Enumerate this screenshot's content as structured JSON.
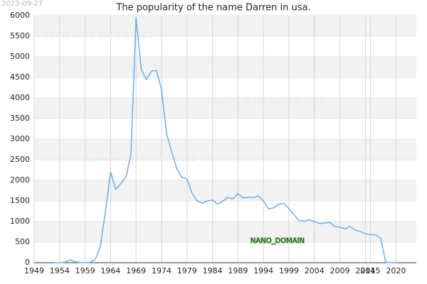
{
  "chart_data": {
    "type": "line",
    "title": "The popularity of the name Darren in usa.",
    "stamp": "2023-09-27",
    "watermarks": [
      "Names of the World © 2023",
      "Names of the World © 2023",
      "Names of the World © 2023"
    ],
    "annotation": "NANO_DOMAIN",
    "x": [
      1953,
      1954,
      1955,
      1956,
      1957,
      1958,
      1959,
      1960,
      1961,
      1962,
      1963,
      1964,
      1965,
      1966,
      1967,
      1968,
      1969,
      1970,
      1971,
      1972,
      1973,
      1974,
      1975,
      1976,
      1977,
      1978,
      1979,
      1980,
      1981,
      1982,
      1983,
      1984,
      1985,
      1986,
      1987,
      1988,
      1989,
      1990,
      1991,
      1992,
      1993,
      1994,
      1995,
      1996,
      1997,
      1998,
      1999,
      2000,
      2001,
      2002,
      2003,
      2004,
      2005,
      2006,
      2007,
      2008,
      2009,
      2010,
      2011,
      2012,
      2013,
      2014,
      2015,
      2016,
      2017,
      2018,
      2019,
      2020
    ],
    "series": [
      {
        "name": "Darren",
        "color": "#6aaee8",
        "values": [
          0,
          0,
          10,
          70,
          20,
          5,
          5,
          10,
          80,
          400,
          1250,
          2200,
          1780,
          1920,
          2080,
          2620,
          5950,
          4700,
          4450,
          4650,
          4670,
          4200,
          3120,
          2700,
          2280,
          2070,
          2040,
          1680,
          1500,
          1450,
          1500,
          1520,
          1420,
          1490,
          1590,
          1550,
          1680,
          1570,
          1590,
          1580,
          1620,
          1500,
          1310,
          1330,
          1420,
          1440,
          1310,
          1160,
          1020,
          1010,
          1040,
          1000,
          950,
          960,
          980,
          880,
          860,
          820,
          880,
          790,
          760,
          700,
          680,
          680,
          590,
          10,
          0,
          0
        ]
      }
    ],
    "xlim": [
      1949,
      2024
    ],
    "xticks": [
      1949,
      1954,
      1959,
      1964,
      1969,
      1974,
      1979,
      1984,
      1989,
      1994,
      1999,
      2004,
      2009,
      2014,
      2015,
      2020
    ],
    "ylim": [
      0,
      6000
    ],
    "yticks": [
      0,
      500,
      1000,
      1500,
      2000,
      2500,
      3000,
      3500,
      4000,
      4500,
      5000,
      5500,
      6000
    ],
    "grid": true
  }
}
